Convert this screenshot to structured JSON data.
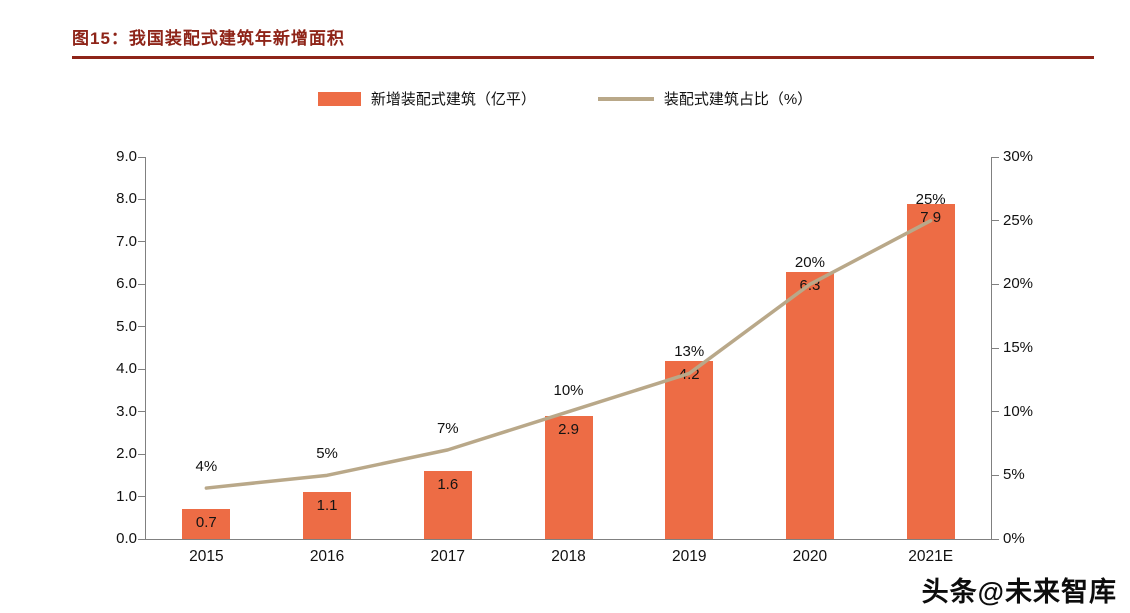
{
  "page": {
    "title": "图15：我国装配式建筑年新增面积",
    "watermark": "头条@未来智库"
  },
  "legend": {
    "bar_label": "新增装配式建筑（亿平）",
    "line_label": "装配式建筑占比（%）"
  },
  "colors": {
    "title_red": "#8e2418",
    "bar_orange": "#ed6c45",
    "line_tan": "#b9a889",
    "axis_gray": "#808080",
    "text": "#111111"
  },
  "chart_data": {
    "type": "bar",
    "subtype": "bar+line combo",
    "title": "图15：我国装配式建筑年新增面积",
    "categories": [
      "2015",
      "2016",
      "2017",
      "2018",
      "2019",
      "2020",
      "2021E"
    ],
    "series": [
      {
        "name": "新增装配式建筑（亿平）",
        "type": "bar",
        "axis": "left",
        "values": [
          0.7,
          1.1,
          1.6,
          2.9,
          4.2,
          6.3,
          7.9
        ],
        "data_labels": [
          "0.7",
          "1.1",
          "1.6",
          "2.9",
          "4.2",
          "6.3",
          "7.9"
        ],
        "color": "#ed6c45"
      },
      {
        "name": "装配式建筑占比（%）",
        "type": "line",
        "axis": "right",
        "values": [
          4,
          5,
          7,
          10,
          13,
          20,
          25
        ],
        "data_labels": [
          "4%",
          "5%",
          "7%",
          "10%",
          "13%",
          "20%",
          "25%"
        ],
        "color": "#b9a889"
      }
    ],
    "left_axis": {
      "min": 0,
      "max": 9,
      "step": 1,
      "tick_labels": [
        "0.0",
        "1.0",
        "2.0",
        "3.0",
        "4.0",
        "5.0",
        "6.0",
        "7.0",
        "8.0",
        "9.0"
      ]
    },
    "right_axis": {
      "min": 0,
      "max": 30,
      "step": 5,
      "tick_labels": [
        "0%",
        "5%",
        "10%",
        "15%",
        "20%",
        "25%",
        "30%"
      ]
    },
    "grid": false,
    "legend_position": "top-center"
  }
}
